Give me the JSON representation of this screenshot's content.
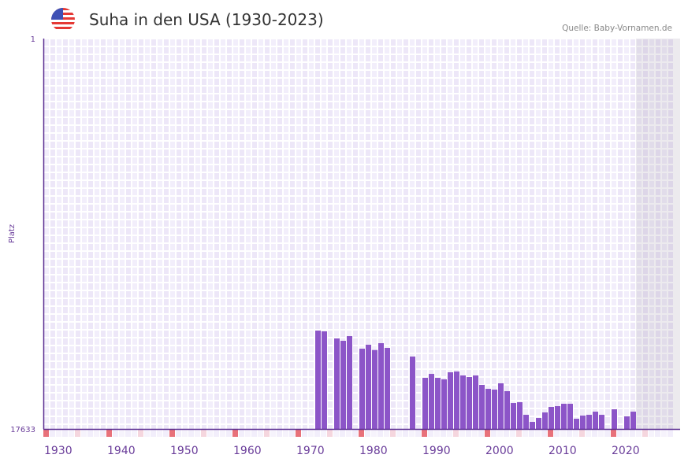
{
  "header": {
    "title": "Suha in den USA (1930-2023)",
    "source": "Quelle: Baby-Vornamen.de",
    "flag_icon": "us-flag-icon"
  },
  "chart_data": {
    "type": "bar",
    "title": "Suha in den USA (1930-2023)",
    "xlabel": "",
    "ylabel": "Platz",
    "y_inverted": true,
    "ylim": [
      1,
      17633
    ],
    "ytick_labels": [
      "1",
      "17633"
    ],
    "x_range": [
      1930,
      2030
    ],
    "xtick_labels": [
      "1930",
      "1940",
      "1950",
      "1960",
      "1970",
      "1980",
      "1990",
      "2000",
      "2010",
      "2020"
    ],
    "shaded_future_from": 2024,
    "grid": true,
    "bar_color": "#8c55c8",
    "decade_marker_color": "#e8717a",
    "half_decade_marker_color": "#f5d6de",
    "x": [
      1973,
      1974,
      1976,
      1977,
      1978,
      1980,
      1981,
      1982,
      1983,
      1984,
      1988,
      1990,
      1991,
      1992,
      1993,
      1994,
      1995,
      1996,
      1997,
      1998,
      1999,
      2000,
      2001,
      2002,
      2003,
      2004,
      2005,
      2006,
      2007,
      2008,
      2009,
      2010,
      2011,
      2012,
      2013,
      2014,
      2015,
      2016,
      2017,
      2018,
      2020,
      2022,
      2023
    ],
    "values": [
      13190,
      13225,
      13545,
      13652,
      13439,
      14008,
      13830,
      14068,
      13759,
      13972,
      14363,
      15323,
      15146,
      15323,
      15394,
      15074,
      15039,
      15217,
      15288,
      15217,
      15643,
      15821,
      15856,
      15572,
      15927,
      16461,
      16425,
      16994,
      17314,
      17136,
      16887,
      16638,
      16603,
      16496,
      16496,
      17172,
      17030,
      16994,
      16852,
      16994,
      16745,
      17065,
      16852
    ]
  }
}
